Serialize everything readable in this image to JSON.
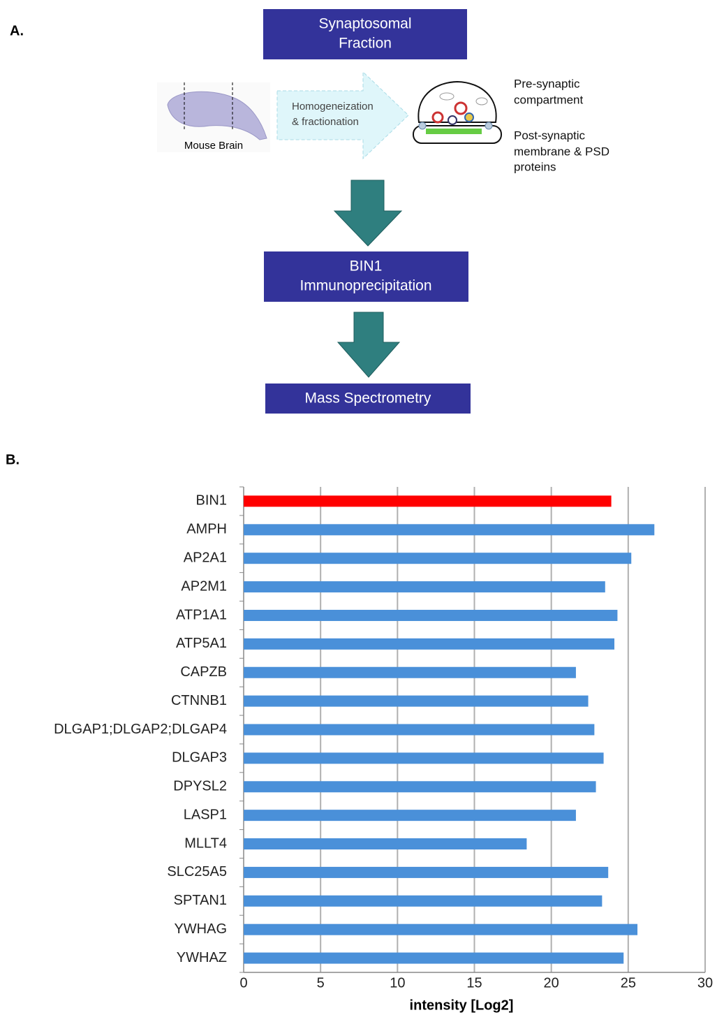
{
  "panels": [
    "A.",
    "B."
  ],
  "diagram": {
    "boxes": [
      {
        "lines": [
          "Synaptosomal",
          "Fraction"
        ]
      },
      {
        "lines": [
          "BIN1",
          "Immunoprecipitation"
        ]
      },
      {
        "lines": [
          "Mass Spectrometry"
        ]
      }
    ],
    "brain_label": "Mouse Brain",
    "process_lines": [
      "Homogeneization",
      "& fractionation"
    ],
    "pre_lines": [
      "Pre-synaptic",
      "compartment"
    ],
    "post_lines": [
      "Post-synaptic",
      "membrane & PSD",
      "proteins"
    ]
  },
  "chart_data": {
    "type": "barh",
    "x_label": "intensity [Log2]",
    "categories": [
      "BIN1",
      "AMPH",
      "AP2A1",
      "AP2M1",
      "ATP1A1",
      "ATP5A1",
      "CAPZB",
      "CTNNB1",
      "DLGAP1;DLGAP2;DLGAP4",
      "DLGAP3",
      "DPYSL2",
      "LASP1",
      "MLLT4",
      "SLC25A5",
      "SPTAN1",
      "YWHAG",
      "YWHAZ"
    ],
    "values": [
      23.9,
      26.7,
      25.2,
      23.5,
      24.3,
      24.1,
      21.6,
      22.4,
      22.8,
      23.4,
      22.9,
      21.6,
      18.4,
      23.7,
      23.3,
      25.6,
      24.7
    ],
    "colors": [
      "#ff0000",
      "#4a90d9",
      "#4a90d9",
      "#4a90d9",
      "#4a90d9",
      "#4a90d9",
      "#4a90d9",
      "#4a90d9",
      "#4a90d9",
      "#4a90d9",
      "#4a90d9",
      "#4a90d9",
      "#4a90d9",
      "#4a90d9",
      "#4a90d9",
      "#4a90d9",
      "#4a90d9"
    ],
    "xlim": [
      0,
      30
    ],
    "xticks": [
      0,
      5,
      10,
      15,
      20,
      25,
      30
    ],
    "grid": true
  }
}
